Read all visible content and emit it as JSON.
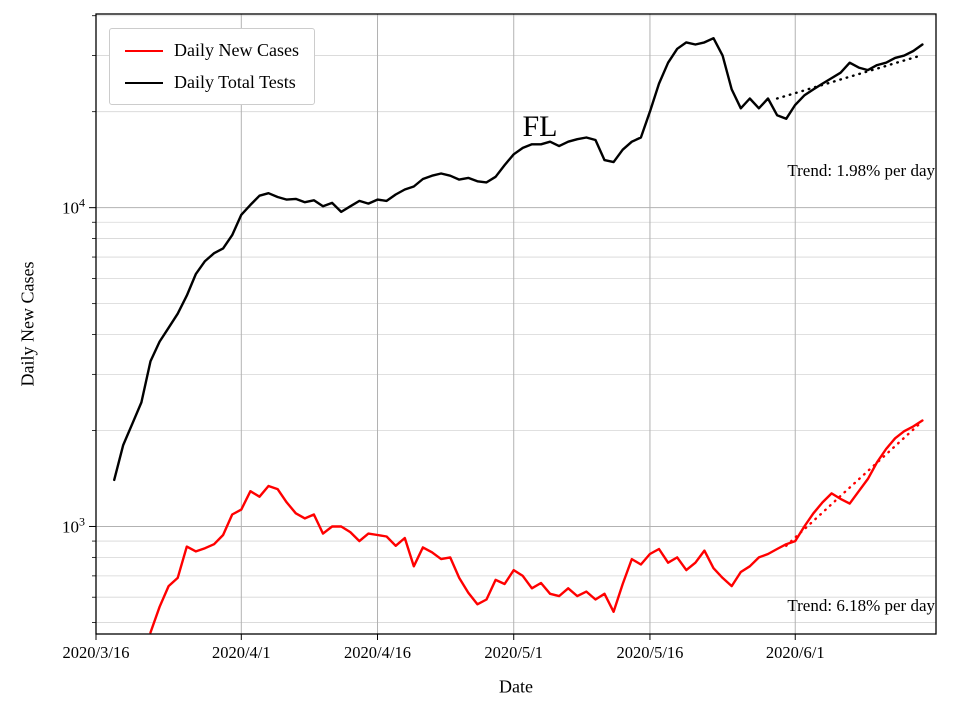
{
  "figure": {
    "background": "#ffffff"
  },
  "chart_data": {
    "type": "line",
    "state_label": "FL",
    "xlabel": "Date",
    "ylabel": "Daily New Cases",
    "y_scale": "log",
    "ylim": [
      460,
      40500
    ],
    "x_start_date": "2020/3/16",
    "x_end_day": 92.5,
    "x_ticks": [
      "2020/3/16",
      "2020/4/1",
      "2020/4/16",
      "2020/5/1",
      "2020/5/16",
      "2020/6/1"
    ],
    "y_major_ticks": [
      1000,
      10000
    ],
    "grid": "both",
    "legend_position": "upper-left",
    "series": [
      {
        "name": "Daily New Cases",
        "color": "#ff0000",
        "start_date": "2020/3/22",
        "values": [
          465,
          560,
          650,
          690,
          865,
          835,
          855,
          880,
          940,
          1090,
          1130,
          1290,
          1240,
          1340,
          1310,
          1190,
          1100,
          1060,
          1090,
          950,
          1000,
          1000,
          960,
          900,
          950,
          940,
          930,
          870,
          920,
          750,
          860,
          830,
          790,
          800,
          690,
          620,
          570,
          590,
          680,
          660,
          730,
          700,
          640,
          665,
          615,
          605,
          640,
          605,
          625,
          590,
          615,
          540,
          660,
          790,
          760,
          820,
          850,
          770,
          800,
          730,
          770,
          840,
          740,
          690,
          650,
          720,
          750,
          800,
          820,
          850,
          880,
          900,
          1000,
          1100,
          1190,
          1270,
          1220,
          1180,
          1290,
          1410,
          1590,
          1750,
          1890,
          1990,
          2060,
          2150
        ]
      },
      {
        "name": "Daily Total Tests",
        "color": "#000000",
        "start_date": "2020/3/18",
        "values": [
          1400,
          1800,
          2100,
          2450,
          3300,
          3800,
          4200,
          4650,
          5300,
          6200,
          6800,
          7200,
          7450,
          8200,
          9500,
          10200,
          10900,
          11100,
          10800,
          10600,
          10650,
          10400,
          10550,
          10100,
          10350,
          9700,
          10100,
          10500,
          10300,
          10600,
          10500,
          11000,
          11400,
          11650,
          12300,
          12600,
          12800,
          12600,
          12250,
          12400,
          12100,
          12000,
          12500,
          13600,
          14700,
          15400,
          15800,
          15800,
          16100,
          15600,
          16100,
          16400,
          16600,
          16300,
          14100,
          13900,
          15200,
          16100,
          16600,
          20000,
          24500,
          28500,
          31500,
          33000,
          32500,
          33000,
          34000,
          30000,
          23500,
          20500,
          22000,
          20500,
          22000,
          19500,
          19000,
          21000,
          22500,
          23500,
          24500,
          25500,
          26500,
          28500,
          27500,
          27000,
          28000,
          28500,
          29500,
          30000,
          31000,
          32500
        ]
      }
    ],
    "trends": [
      {
        "label": "Trend: 1.98% per day",
        "series": "Daily Total Tests",
        "color": "#000000",
        "rate_pct_per_day": 1.98,
        "start_date": "2020/5/30",
        "end_date": "2020/6/15",
        "start_value": 22000
      },
      {
        "label": "Trend: 6.18% per day",
        "series": "Daily New Cases",
        "color": "#ff0000",
        "rate_pct_per_day": 6.18,
        "start_date": "2020/5/31",
        "end_date": "2020/6/15",
        "start_value": 870
      }
    ]
  }
}
